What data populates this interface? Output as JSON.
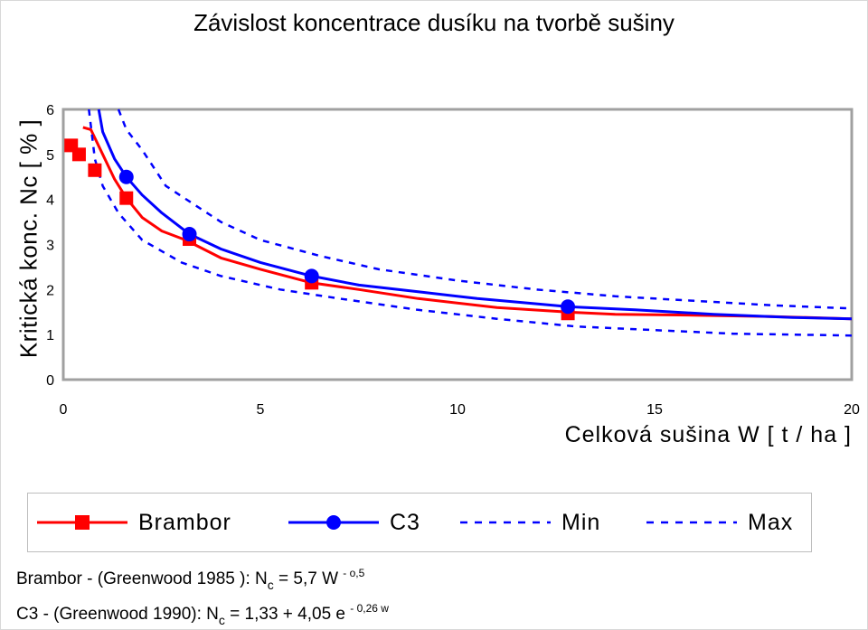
{
  "title": "Závislost koncentrace dusíku na tvorbě sušiny",
  "chart_data": {
    "type": "line",
    "title": "Závislost koncentrace dusíku na tvorbě sušiny",
    "xlabel": "Celková sušina W [ t / ha ]",
    "ylabel": "Kritická konc. Nc [ % ]",
    "xlim": [
      0,
      20
    ],
    "ylim": [
      0,
      6
    ],
    "x_ticks": [
      "0",
      "5",
      "10",
      "15",
      "20"
    ],
    "y_ticks": [
      "0",
      "1",
      "2",
      "3",
      "4",
      "5",
      "6"
    ],
    "grid": false,
    "legend_position": "bottom",
    "series": [
      {
        "name": "Brambor",
        "color": "#ff0000",
        "style": "solid",
        "marker": "square",
        "curve": "Nc = 5.7 * W^-0.5",
        "x": [
          0.5,
          0.7,
          1.0,
          1.3,
          1.6,
          2.0,
          2.5,
          3.1,
          4.0,
          5.0,
          6.3,
          7.5,
          9.0,
          11.0,
          12.8,
          14.0,
          16.0,
          18.0,
          20.0
        ],
        "y": [
          5.6,
          5.55,
          5.0,
          4.45,
          4.03,
          3.6,
          3.3,
          3.1,
          2.7,
          2.45,
          2.15,
          2.0,
          1.8,
          1.6,
          1.5,
          1.45,
          1.43,
          1.4,
          1.35
        ],
        "markers_x": [
          0.2,
          0.4,
          0.8,
          1.6,
          3.2,
          6.3,
          12.8
        ],
        "markers_y": [
          5.2,
          5.0,
          4.65,
          4.03,
          3.12,
          2.15,
          1.47
        ]
      },
      {
        "name": "C3",
        "color": "#0000ff",
        "style": "solid",
        "marker": "circle",
        "curve": "Nc = 1.33 + 4.05 e^-0.26W",
        "x": [
          0.9,
          1.0,
          1.3,
          1.6,
          2.0,
          2.5,
          3.2,
          4.0,
          5.0,
          6.3,
          7.5,
          9.0,
          10.5,
          12.8,
          14.5,
          16.5,
          18.5,
          20.0
        ],
        "y": [
          6.0,
          5.5,
          4.9,
          4.5,
          4.1,
          3.7,
          3.23,
          2.9,
          2.6,
          2.3,
          2.1,
          1.95,
          1.8,
          1.62,
          1.55,
          1.45,
          1.38,
          1.35
        ],
        "markers_x": [
          1.6,
          3.2,
          6.3,
          12.8
        ],
        "markers_y": [
          4.5,
          3.23,
          2.3,
          1.62
        ]
      },
      {
        "name": "Min",
        "color": "#0000ff",
        "style": "dashed",
        "x": [
          0.65,
          0.8,
          1.0,
          1.4,
          2.0,
          3.0,
          4.0,
          5.5,
          7.0,
          9.0,
          11.0,
          13.0,
          15.0,
          17.0,
          20.0
        ],
        "y": [
          6.0,
          4.9,
          4.3,
          3.7,
          3.1,
          2.6,
          2.3,
          2.0,
          1.8,
          1.55,
          1.35,
          1.18,
          1.1,
          1.02,
          0.98
        ]
      },
      {
        "name": "Max",
        "color": "#0000ff",
        "style": "dashed",
        "x": [
          1.4,
          1.6,
          2.0,
          2.6,
          3.3,
          4.0,
          5.0,
          6.5,
          8.0,
          10.0,
          12.0,
          14.0,
          16.0,
          18.0,
          20.0
        ],
        "y": [
          6.0,
          5.55,
          5.1,
          4.3,
          3.9,
          3.5,
          3.1,
          2.75,
          2.45,
          2.2,
          2.0,
          1.85,
          1.75,
          1.65,
          1.58
        ]
      }
    ]
  },
  "formulas": {
    "line1": {
      "prefix": "Brambor - (Greenwood 1985 ):  N",
      "sub": "c",
      "middle": " = 5,7 W ",
      "sup": "- o,5"
    },
    "line2": {
      "prefix": "C3 - (Greenwood 1990):  N",
      "sub": "c",
      "middle": " = 1,33 + 4,05 e ",
      "sup": "- 0,26 w"
    }
  }
}
